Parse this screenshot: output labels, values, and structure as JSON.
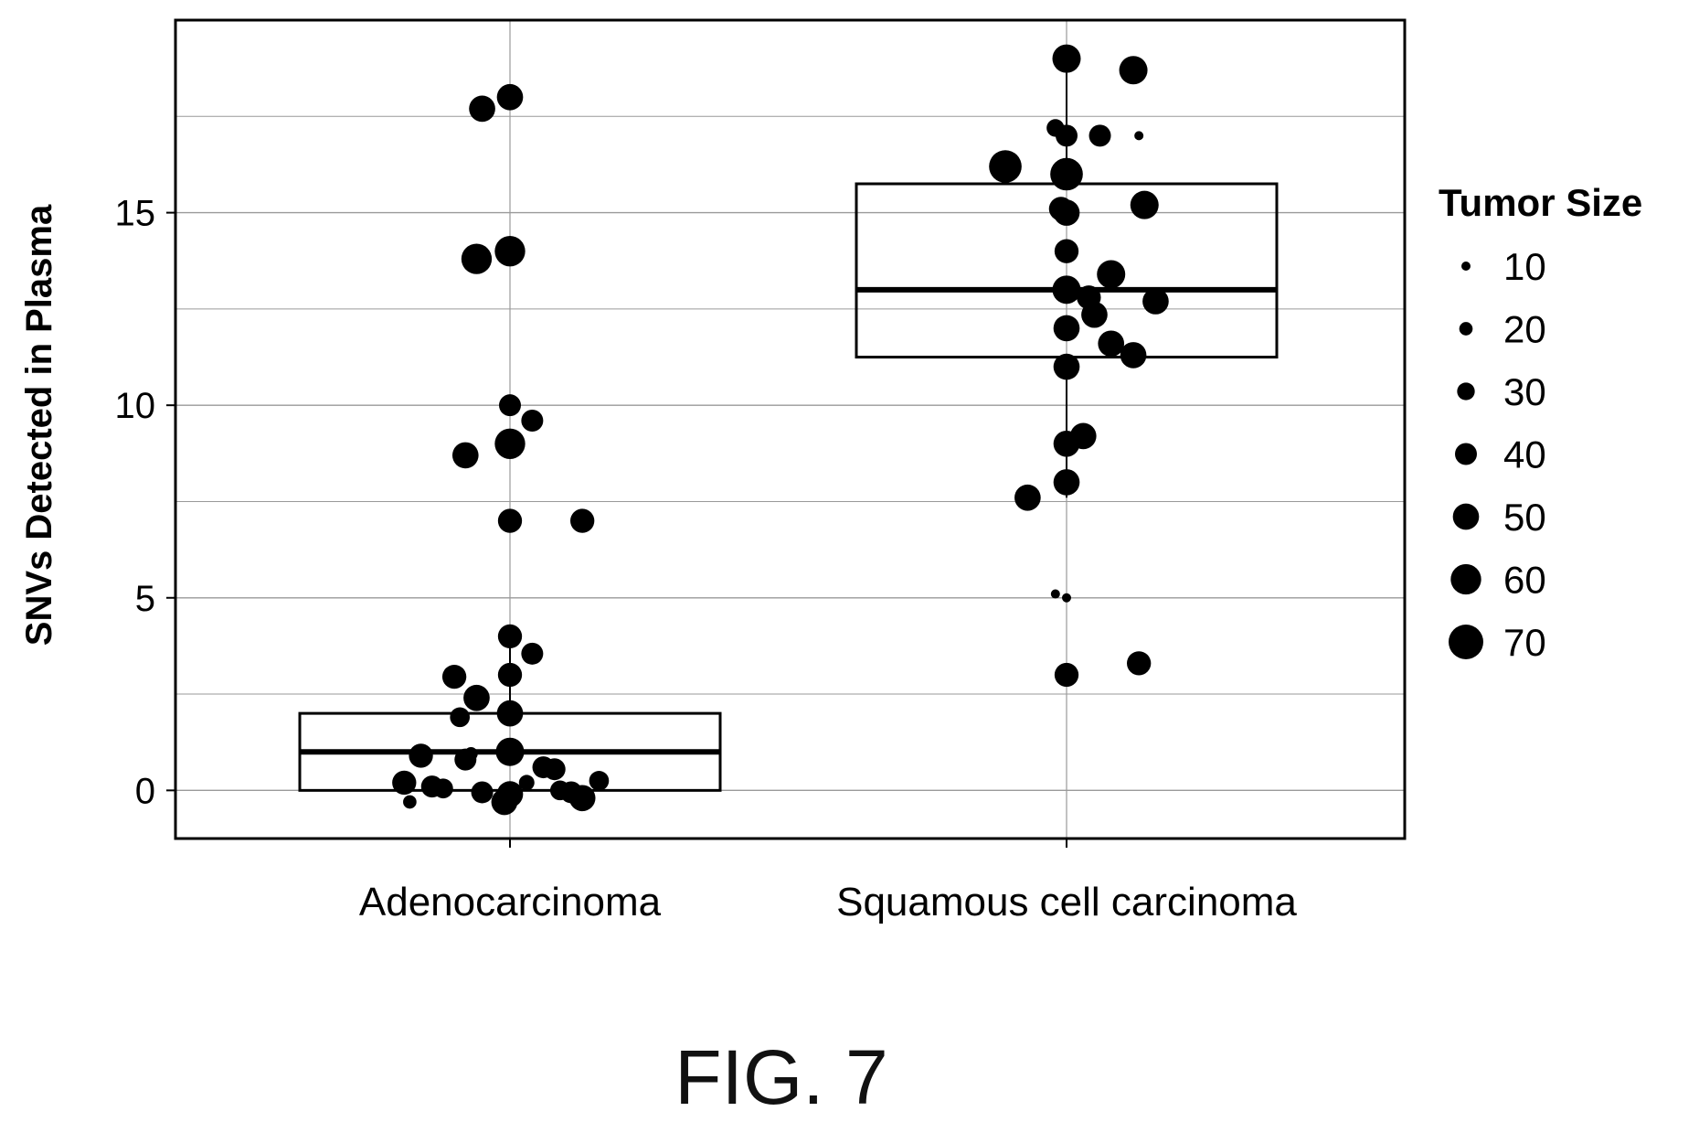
{
  "figure": {
    "caption": "FIG. 7"
  },
  "chart_data": {
    "type": "box+scatter",
    "title": "",
    "xlabel": "",
    "ylabel": "SNVs Detected in Plasma",
    "ylim": [
      -1.25,
      20
    ],
    "yticks": [
      0,
      5,
      10,
      15
    ],
    "grid": true,
    "categories": [
      "Adenocarcinoma",
      "Squamous cell carcinoma"
    ],
    "colors": {
      "points": "#000000",
      "box": "#000000",
      "grid": "#9a9a9a",
      "background": "#ffffff"
    },
    "boxes": [
      {
        "category": "Adenocarcinoma",
        "q1": 0,
        "median": 1,
        "q3": 2,
        "whisker_low": 0,
        "whisker_high": 4
      },
      {
        "category": "Squamous cell carcinoma",
        "q1": 11.25,
        "median": 13,
        "q3": 15.75,
        "whisker_low": 7.6,
        "whisker_high": 19
      }
    ],
    "size_legend": {
      "title": "Tumor Size",
      "values": [
        10,
        20,
        30,
        40,
        50,
        60,
        70
      ],
      "size_range": [
        10,
        70
      ]
    },
    "series": [
      {
        "name": "Adenocarcinoma",
        "points": [
          {
            "jitter": -0.05,
            "y": 17.7,
            "size": 50
          },
          {
            "jitter": 0.0,
            "y": 18.0,
            "size": 50
          },
          {
            "jitter": -0.06,
            "y": 13.8,
            "size": 60
          },
          {
            "jitter": 0.0,
            "y": 14.0,
            "size": 60
          },
          {
            "jitter": 0.0,
            "y": 10.0,
            "size": 40
          },
          {
            "jitter": 0.04,
            "y": 9.6,
            "size": 40
          },
          {
            "jitter": -0.08,
            "y": 8.7,
            "size": 50
          },
          {
            "jitter": 0.0,
            "y": 9.0,
            "size": 60
          },
          {
            "jitter": 0.0,
            "y": 7.0,
            "size": 45
          },
          {
            "jitter": 0.13,
            "y": 7.0,
            "size": 45
          },
          {
            "jitter": 0.0,
            "y": 4.0,
            "size": 45
          },
          {
            "jitter": 0.04,
            "y": 3.55,
            "size": 40
          },
          {
            "jitter": -0.1,
            "y": 2.95,
            "size": 45
          },
          {
            "jitter": 0.0,
            "y": 3.0,
            "size": 45
          },
          {
            "jitter": -0.06,
            "y": 2.4,
            "size": 50
          },
          {
            "jitter": -0.09,
            "y": 1.9,
            "size": 35
          },
          {
            "jitter": 0.0,
            "y": 2.0,
            "size": 50
          },
          {
            "jitter": -0.16,
            "y": 0.9,
            "size": 45
          },
          {
            "jitter": -0.08,
            "y": 0.8,
            "size": 40
          },
          {
            "jitter": -0.07,
            "y": 0.95,
            "size": 20
          },
          {
            "jitter": 0.0,
            "y": 1.0,
            "size": 55
          },
          {
            "jitter": 0.06,
            "y": 0.6,
            "size": 40
          },
          {
            "jitter": 0.08,
            "y": 0.55,
            "size": 40
          },
          {
            "jitter": -0.19,
            "y": 0.2,
            "size": 45
          },
          {
            "jitter": -0.14,
            "y": 0.1,
            "size": 40
          },
          {
            "jitter": -0.12,
            "y": 0.05,
            "size": 35
          },
          {
            "jitter": -0.05,
            "y": -0.05,
            "size": 40
          },
          {
            "jitter": 0.0,
            "y": -0.1,
            "size": 50
          },
          {
            "jitter": 0.03,
            "y": 0.2,
            "size": 25
          },
          {
            "jitter": -0.01,
            "y": -0.3,
            "size": 50
          },
          {
            "jitter": 0.09,
            "y": 0.0,
            "size": 35
          },
          {
            "jitter": 0.11,
            "y": -0.05,
            "size": 40
          },
          {
            "jitter": 0.13,
            "y": -0.2,
            "size": 50
          },
          {
            "jitter": 0.16,
            "y": 0.25,
            "size": 35
          },
          {
            "jitter": -0.18,
            "y": -0.3,
            "size": 20
          }
        ]
      },
      {
        "name": "Squamous cell carcinoma",
        "points": [
          {
            "jitter": 0.0,
            "y": 19.0,
            "size": 55
          },
          {
            "jitter": 0.12,
            "y": 18.7,
            "size": 55
          },
          {
            "jitter": -0.02,
            "y": 17.2,
            "size": 30
          },
          {
            "jitter": 0.0,
            "y": 17.0,
            "size": 40
          },
          {
            "jitter": 0.06,
            "y": 17.0,
            "size": 40
          },
          {
            "jitter": 0.13,
            "y": 17.0,
            "size": 10
          },
          {
            "jitter": -0.11,
            "y": 16.2,
            "size": 65
          },
          {
            "jitter": 0.0,
            "y": 16.0,
            "size": 65
          },
          {
            "jitter": -0.01,
            "y": 15.1,
            "size": 45
          },
          {
            "jitter": 0.0,
            "y": 15.0,
            "size": 50
          },
          {
            "jitter": 0.14,
            "y": 15.2,
            "size": 55
          },
          {
            "jitter": 0.0,
            "y": 14.0,
            "size": 45
          },
          {
            "jitter": 0.08,
            "y": 13.4,
            "size": 55
          },
          {
            "jitter": 0.0,
            "y": 13.0,
            "size": 55
          },
          {
            "jitter": 0.04,
            "y": 12.8,
            "size": 45
          },
          {
            "jitter": 0.16,
            "y": 12.7,
            "size": 50
          },
          {
            "jitter": 0.0,
            "y": 12.0,
            "size": 50
          },
          {
            "jitter": 0.05,
            "y": 12.35,
            "size": 50
          },
          {
            "jitter": 0.08,
            "y": 11.6,
            "size": 50
          },
          {
            "jitter": 0.12,
            "y": 11.3,
            "size": 50
          },
          {
            "jitter": 0.0,
            "y": 11.0,
            "size": 50
          },
          {
            "jitter": 0.03,
            "y": 9.2,
            "size": 50
          },
          {
            "jitter": 0.0,
            "y": 9.0,
            "size": 50
          },
          {
            "jitter": -0.07,
            "y": 7.6,
            "size": 50
          },
          {
            "jitter": 0.0,
            "y": 8.0,
            "size": 50
          },
          {
            "jitter": -0.02,
            "y": 5.1,
            "size": 10
          },
          {
            "jitter": 0.0,
            "y": 5.0,
            "size": 10
          },
          {
            "jitter": 0.0,
            "y": 3.0,
            "size": 45
          },
          {
            "jitter": 0.13,
            "y": 3.3,
            "size": 45
          }
        ]
      }
    ]
  }
}
